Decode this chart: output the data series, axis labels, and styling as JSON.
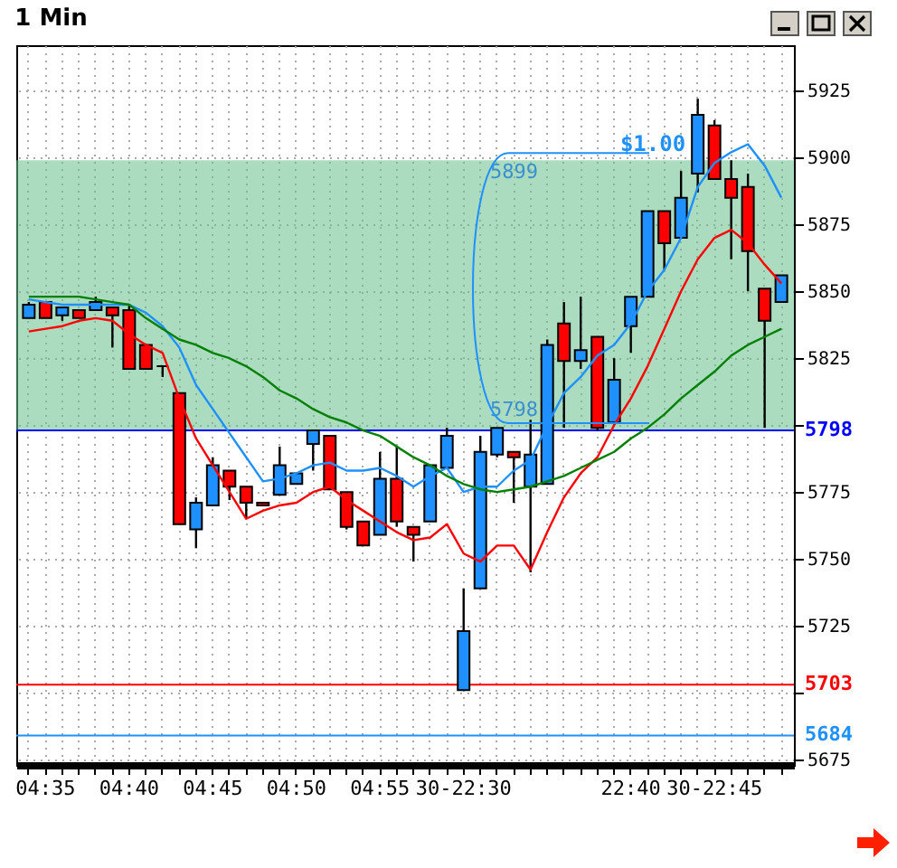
{
  "chart_data": {
    "type": "candlestick",
    "title": "1 Min",
    "categories": [
      null,
      "04:35",
      null,
      null,
      null,
      null,
      "04:40",
      null,
      null,
      null,
      null,
      "04:45",
      null,
      null,
      null,
      null,
      "04:50",
      null,
      null,
      null,
      null,
      "04:55",
      null,
      null,
      null,
      null,
      "30-22:30",
      null,
      null,
      null,
      null,
      null,
      null,
      null,
      null,
      null,
      "22:40",
      null,
      null,
      null,
      null,
      "30-22:45",
      null,
      null,
      null,
      null
    ],
    "ohlc": [
      [
        5840,
        5846,
        5840,
        5845
      ],
      [
        5846,
        5846,
        5840,
        5840
      ],
      [
        5841,
        5844,
        5839,
        5844
      ],
      [
        5843,
        5843,
        5840,
        5840
      ],
      [
        5843,
        5848,
        5843,
        5846
      ],
      [
        5844,
        5844,
        5829,
        5841
      ],
      [
        5843,
        5845,
        5821,
        5821
      ],
      [
        5830,
        5830,
        5821,
        5821
      ],
      [
        5822,
        5822,
        5818,
        5822
      ],
      [
        5812,
        5812,
        5763,
        5763
      ],
      [
        5761,
        5773,
        5754,
        5771
      ],
      [
        5770,
        5788,
        5770,
        5785
      ],
      [
        5783,
        5783,
        5772,
        5777
      ],
      [
        5777,
        5777,
        5765,
        5771
      ],
      [
        5771,
        5771,
        5770,
        5770
      ],
      [
        5774,
        5792,
        5774,
        5785
      ],
      [
        5778,
        5782,
        5778,
        5782
      ],
      [
        5793,
        5798,
        5783,
        5798
      ],
      [
        5796,
        5796,
        5776,
        5776
      ],
      [
        5775,
        5775,
        5761,
        5762
      ],
      [
        5764,
        5764,
        5755,
        5755
      ],
      [
        5759,
        5790,
        5759,
        5780
      ],
      [
        5780,
        5792,
        5762,
        5764
      ],
      [
        5762,
        5762,
        5749,
        5759
      ],
      [
        5764,
        5785,
        5764,
        5785
      ],
      [
        5784,
        5799,
        5784,
        5796
      ],
      [
        5701,
        5739,
        5701,
        5723
      ],
      [
        5739,
        5796,
        5739,
        5790
      ],
      [
        5789,
        5799,
        5788,
        5799
      ],
      [
        5790,
        5790,
        5771,
        5788
      ],
      [
        5777,
        5802,
        5745,
        5789
      ],
      [
        5778,
        5832,
        5778,
        5830
      ],
      [
        5838,
        5846,
        5799,
        5824
      ],
      [
        5824,
        5848,
        5821,
        5828
      ],
      [
        5833,
        5833,
        5798,
        5799
      ],
      [
        5801,
        5825,
        5800,
        5817
      ],
      [
        5837,
        5848,
        5827,
        5848
      ],
      [
        5848,
        5880,
        5848,
        5880
      ],
      [
        5880,
        5880,
        5858,
        5868
      ],
      [
        5870,
        5895,
        5870,
        5885
      ],
      [
        5894,
        5922,
        5887,
        5916
      ],
      [
        5912,
        5914,
        5892,
        5892
      ],
      [
        5892,
        5899,
        5862,
        5885
      ],
      [
        5889,
        5894,
        5850,
        5865
      ],
      [
        5851,
        5851,
        5799,
        5839
      ],
      [
        5846,
        5856,
        5846,
        5856
      ]
    ],
    "colors": [
      "#1e90ff",
      "#ff0000",
      "#1e90ff",
      "#ff0000",
      "#1e90ff",
      "#ff0000",
      "#ff0000",
      "#ff0000",
      "#000000",
      "#ff0000",
      "#1e90ff",
      "#1e90ff",
      "#ff0000",
      "#ff0000",
      "#ff0000",
      "#1e90ff",
      "#1e90ff",
      "#1e90ff",
      "#ff0000",
      "#ff0000",
      "#ff0000",
      "#1e90ff",
      "#ff0000",
      "#ff0000",
      "#1e90ff",
      "#1e90ff",
      "#1e90ff",
      "#1e90ff",
      "#1e90ff",
      "#ff0000",
      "#1e90ff",
      "#1e90ff",
      "#ff0000",
      "#1e90ff",
      "#ff0000",
      "#1e90ff",
      "#1e90ff",
      "#1e90ff",
      "#ff0000",
      "#1e90ff",
      "#1e90ff",
      "#ff0000",
      "#ff0000",
      "#ff0000",
      "#ff0000",
      "#1e90ff"
    ],
    "series": [
      {
        "type": "line",
        "color": "#1e90ff",
        "values": [
          5847,
          5846,
          5845,
          5845,
          5845,
          5845,
          5845,
          5842,
          5837,
          5829,
          5815,
          5806,
          5797,
          5788,
          5779,
          5780,
          5782,
          5785,
          5786,
          5783,
          5783,
          5784,
          5781,
          5777,
          5781,
          5784,
          5775,
          5777,
          5777,
          5783,
          5787,
          5800,
          5812,
          5818,
          5826,
          5830,
          5838,
          5850,
          5858,
          5870,
          5889,
          5898,
          5902,
          5905,
          5897,
          5885
        ]
      },
      {
        "type": "line",
        "color": "#ff0000",
        "values": [
          5835,
          5836,
          5837,
          5839,
          5840,
          5839,
          5834,
          5830,
          5827,
          5810,
          5795,
          5785,
          5775,
          5765,
          5768,
          5770,
          5771,
          5775,
          5777,
          5772,
          5768,
          5764,
          5760,
          5757,
          5758,
          5763,
          5752,
          5749,
          5755,
          5755,
          5746,
          5760,
          5773,
          5782,
          5788,
          5800,
          5810,
          5822,
          5836,
          5850,
          5862,
          5870,
          5873,
          5868,
          5860,
          5853
        ]
      },
      {
        "type": "line",
        "color": "#008000",
        "values": [
          5848,
          5848,
          5848,
          5848,
          5847,
          5846,
          5845,
          5840,
          5836,
          5832,
          5830,
          5827,
          5825,
          5822,
          5818,
          5813,
          5810,
          5806,
          5803,
          5801,
          5798,
          5796,
          5792,
          5788,
          5785,
          5781,
          5778,
          5776,
          5775,
          5776,
          5777,
          5779,
          5781,
          5784,
          5787,
          5790,
          5795,
          5799,
          5804,
          5810,
          5815,
          5820,
          5826,
          5830,
          5833,
          5836
        ]
      }
    ],
    "ylim": [
      5673,
      5942
    ],
    "yticks": [
      5675,
      {
        "value": 5700,
        "label": null
      },
      5725,
      5750,
      5775,
      {
        "value": 5800,
        "label": null
      },
      5825,
      5850,
      5875,
      5900,
      5925
    ],
    "grid": true,
    "ref_lines": [
      {
        "axis": "y",
        "value": 5798,
        "label": "5798",
        "color": "#0000ff"
      },
      {
        "axis": "y",
        "value": 5703,
        "label": "5703",
        "color": "#ff0000"
      },
      {
        "axis": "y",
        "value": 5684,
        "label": "5684",
        "color": "#1e90ff"
      }
    ],
    "bands": [
      {
        "axis": "y",
        "from": 5798,
        "to": 5899,
        "label": "$1.00",
        "color": "#66c08a"
      }
    ],
    "annotations": [
      {
        "text": "5899",
        "y": 5899
      },
      {
        "text": "5798",
        "y": 5798
      }
    ]
  }
}
